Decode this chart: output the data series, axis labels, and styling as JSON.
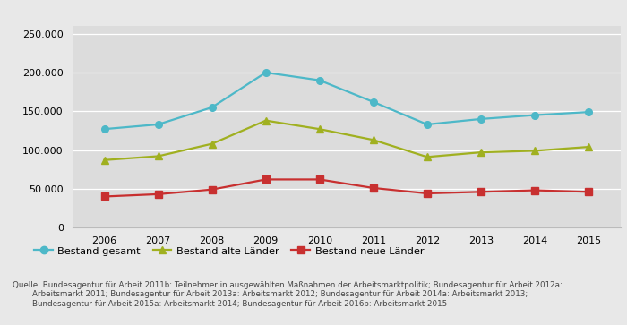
{
  "years": [
    2006,
    2007,
    2008,
    2009,
    2010,
    2011,
    2012,
    2013,
    2014,
    2015
  ],
  "bestand_gesamt": [
    127000,
    133000,
    155000,
    200000,
    190000,
    162000,
    133000,
    140000,
    145000,
    149000
  ],
  "bestand_alte": [
    87000,
    92000,
    108000,
    138000,
    127000,
    113000,
    91000,
    97000,
    99000,
    104000
  ],
  "bestand_neue": [
    40000,
    43000,
    49000,
    62000,
    62000,
    51000,
    44000,
    46000,
    48000,
    46000
  ],
  "color_gesamt": "#4db8c8",
  "color_alte": "#a0b020",
  "color_neue": "#c83030",
  "bg_color": "#e8e8e8",
  "plot_bg_color": "#dcdcdc",
  "ylim": [
    0,
    260000
  ],
  "yticks": [
    0,
    50000,
    100000,
    150000,
    200000,
    250000
  ],
  "ytick_labels": [
    "0",
    "50.000",
    "100.000",
    "150.000",
    "200.000",
    "250.000"
  ],
  "legend_gesamt": "Bestand gesamt",
  "legend_alte": "Bestand alte Länder",
  "legend_neue": "Bestand neue Länder",
  "source_line1": "Quelle: Bundesagentur für Arbeit 2011b: Teilnehmer in ausgewählten Maßnahmen der Arbeitsmarktpolitik; Bundesagentur für Arbeit 2012a:",
  "source_line2": "        Arbeitsmarkt 2011; Bundesagentur für Arbeit 2013a: Arbeitsmarkt 2012; Bundesagentur für Arbeit 2014a: Arbeitsmarkt 2013;",
  "source_line3": "        Bundesagentur für Arbeit 2015a: Arbeitsmarkt 2014; Bundesagentur für Arbeit 2016b: Arbeitsmarkt 2015"
}
